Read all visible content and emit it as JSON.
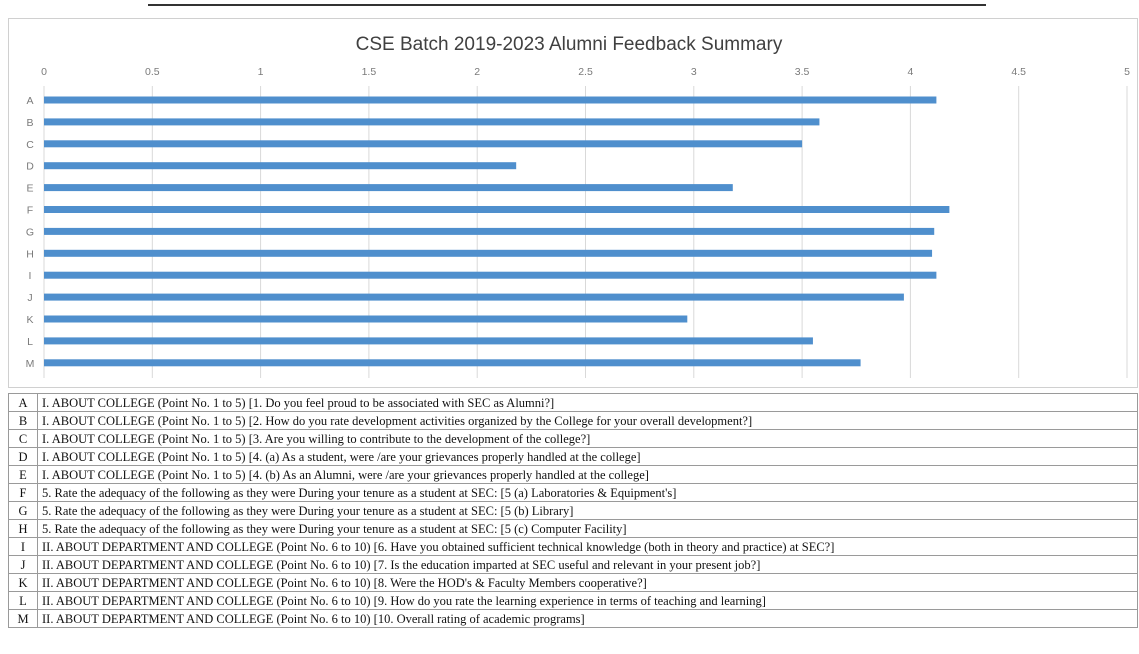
{
  "chart_data": {
    "type": "bar",
    "orientation": "horizontal",
    "title": "CSE Batch 2019-2023 Alumni Feedback Summary",
    "xlim": [
      0,
      5
    ],
    "x_ticks": [
      "0",
      "0.5",
      "1",
      "1.5",
      "2",
      "2.5",
      "3",
      "3.5",
      "4",
      "4.5",
      "5"
    ],
    "categories": [
      "A",
      "B",
      "C",
      "D",
      "E",
      "F",
      "G",
      "H",
      "I",
      "J",
      "K",
      "L",
      "M"
    ],
    "values": [
      4.12,
      3.58,
      3.5,
      2.18,
      3.18,
      4.18,
      4.11,
      4.1,
      4.12,
      3.97,
      2.97,
      3.55,
      3.77
    ],
    "grid": "vertical",
    "bar_color": "#4f8fcd"
  },
  "legend_rows": [
    {
      "code": "A",
      "text": "I. ABOUT COLLEGE (Point No. 1 to 5) [1. Do you feel proud to be associated with SEC as Alumni?]"
    },
    {
      "code": "B",
      "text": "I. ABOUT COLLEGE (Point No. 1 to 5) [2. How do you rate development activities organized by the College for your overall development?]"
    },
    {
      "code": "C",
      "text": "I. ABOUT COLLEGE (Point No. 1 to 5) [3. Are you willing to contribute to the development of the college?]"
    },
    {
      "code": "D",
      "text": "I. ABOUT COLLEGE (Point No. 1 to 5) [4. (a) As a student, were /are your grievances properly handled at the college]"
    },
    {
      "code": "E",
      "text": "I. ABOUT COLLEGE (Point No. 1 to 5) [4. (b) As an Alumni, were /are your grievances properly handled at the college]"
    },
    {
      "code": "F",
      "text": "5. Rate the adequacy of the following as they were During your tenure as a student at SEC: [5 (a) Laboratories & Equipment's]"
    },
    {
      "code": "G",
      "text": "5. Rate the adequacy of the following as they were During your tenure as a student at SEC: [5 (b) Library]"
    },
    {
      "code": "H",
      "text": "5. Rate the adequacy of the following as they were During your tenure as a student at SEC: [5 (c) Computer Facility]"
    },
    {
      "code": "I",
      "text": "II. ABOUT DEPARTMENT AND COLLEGE (Point No. 6 to 10) [6. Have you obtained sufficient technical knowledge (both in theory and practice) at SEC?]"
    },
    {
      "code": "J",
      "text": "II. ABOUT DEPARTMENT AND COLLEGE (Point No. 6 to 10) [7. Is the education imparted at SEC useful and relevant in your present job?]"
    },
    {
      "code": "K",
      "text": "II. ABOUT DEPARTMENT AND COLLEGE (Point No. 6 to 10) [8. Were the HOD's & Faculty Members cooperative?]"
    },
    {
      "code": "L",
      "text": "II. ABOUT DEPARTMENT AND COLLEGE (Point No. 6 to 10) [9. How do you rate the learning experience in terms of teaching and learning]"
    },
    {
      "code": "M",
      "text": "II. ABOUT DEPARTMENT AND COLLEGE (Point No. 6 to 10) [10. Overall rating of academic programs]"
    }
  ]
}
